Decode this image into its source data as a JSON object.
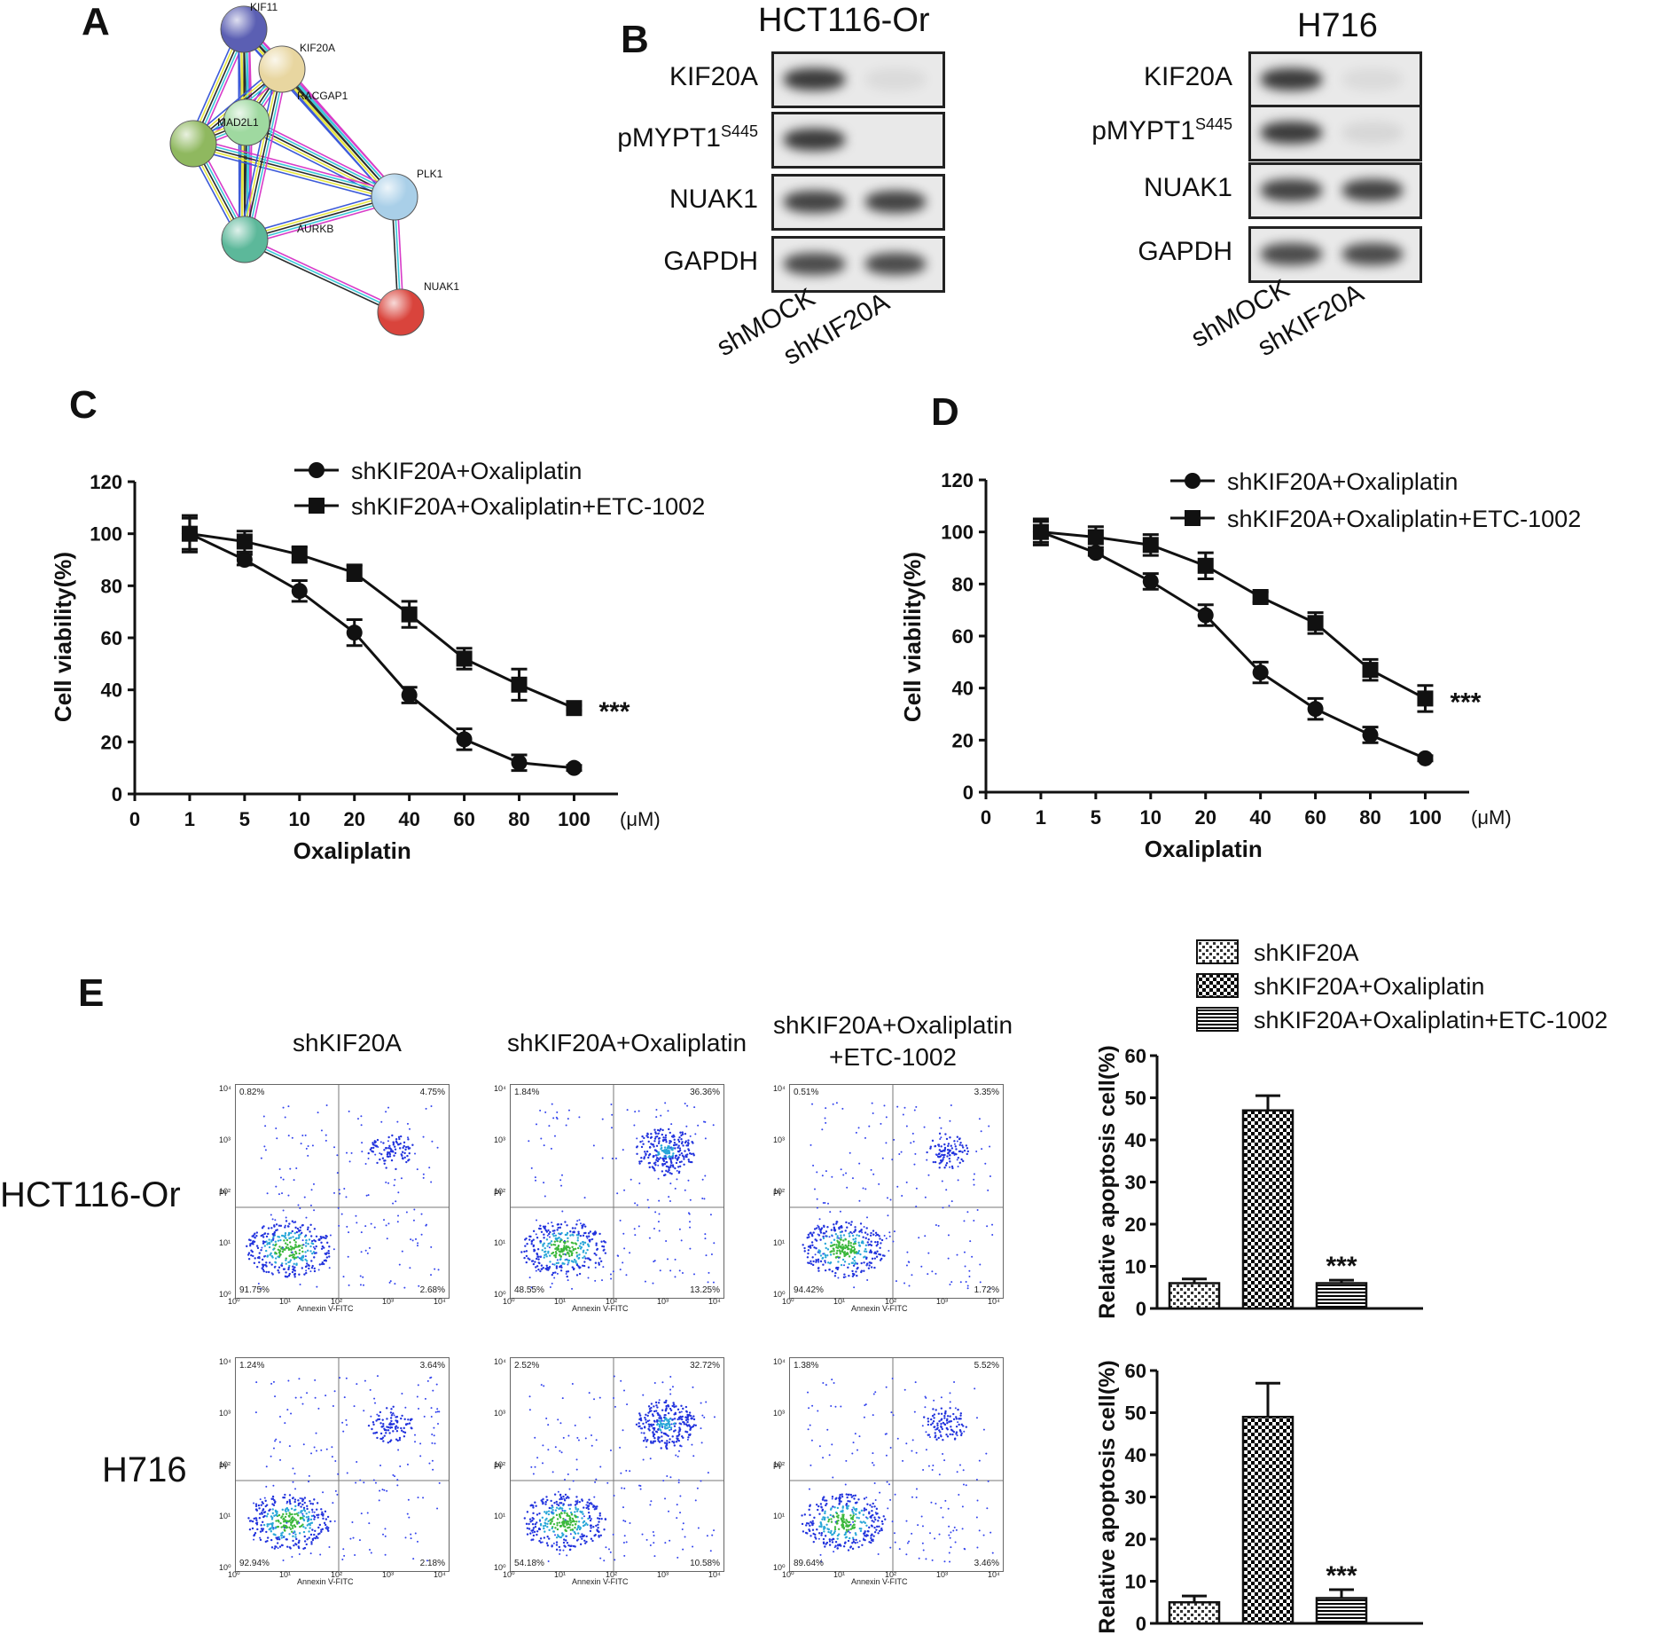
{
  "panels": {
    "A": "A",
    "B": "B",
    "C": "C",
    "D": "D",
    "E": "E"
  },
  "network": {
    "nodes": [
      {
        "name": "KIF11",
        "color": "#5b5fb3"
      },
      {
        "name": "KIF20A",
        "color": "#e8d6a0"
      },
      {
        "name": "RACGAP1",
        "color": "#9fd9a0"
      },
      {
        "name": "MAD2L1",
        "color": "#8fb85f"
      },
      {
        "name": "PLK1",
        "color": "#a9cfe8"
      },
      {
        "name": "AURKB",
        "color": "#5cb89a"
      },
      {
        "name": "NUAK1",
        "color": "#d9443c"
      }
    ]
  },
  "western": {
    "hct_title": "HCT116-Or",
    "h716_title": "H716",
    "rows": [
      "KIF20A",
      "pMYPT1",
      "NUAK1",
      "GAPDH"
    ],
    "site_sup": "S445",
    "lanes": [
      "shMOCK",
      "shKIF20A"
    ]
  },
  "chart_data": [
    {
      "type": "line",
      "panel": "C",
      "xlabel": "Oxaliplatin",
      "xunit": "(μM)",
      "ylabel": "Cell viability(%)",
      "categories": [
        "0",
        "1",
        "5",
        "10",
        "20",
        "40",
        "60",
        "80",
        "100"
      ],
      "x": [
        "1",
        "5",
        "10",
        "20",
        "40",
        "60",
        "80",
        "100"
      ],
      "ylim": [
        0,
        120
      ],
      "yticks": [
        "0",
        "20",
        "40",
        "60",
        "80",
        "100",
        "120"
      ],
      "series": [
        {
          "name": "shKIF20A+Oxaliplatin",
          "marker": "circle",
          "values": [
            100,
            90,
            78,
            62,
            38,
            21,
            12,
            10
          ],
          "err": [
            7,
            2,
            4,
            5,
            3,
            4,
            3,
            1
          ]
        },
        {
          "name": "shKIF20A+Oxaliplatin+ETC-1002",
          "marker": "square",
          "values": [
            100,
            97,
            92,
            85,
            69,
            52,
            42,
            33
          ],
          "err": [
            6,
            4,
            3,
            3,
            5,
            4,
            6,
            1
          ]
        }
      ],
      "annotation": "***"
    },
    {
      "type": "line",
      "panel": "D",
      "xlabel": "Oxaliplatin",
      "xunit": "(μM)",
      "ylabel": "Cell viability(%)",
      "categories": [
        "0",
        "1",
        "5",
        "10",
        "20",
        "40",
        "60",
        "80",
        "100"
      ],
      "x": [
        "1",
        "5",
        "10",
        "20",
        "40",
        "60",
        "80",
        "100"
      ],
      "ylim": [
        0,
        120
      ],
      "yticks": [
        "0",
        "20",
        "40",
        "60",
        "80",
        "100",
        "120"
      ],
      "series": [
        {
          "name": "shKIF20A+Oxaliplatin",
          "marker": "circle",
          "values": [
            100,
            92,
            81,
            68,
            46,
            32,
            22,
            13
          ],
          "err": [
            4,
            1,
            3,
            4,
            4,
            4,
            3,
            1
          ]
        },
        {
          "name": "shKIF20A+Oxaliplatin+ETC-1002",
          "marker": "square",
          "values": [
            100,
            98,
            95,
            87,
            75,
            65,
            47,
            36
          ],
          "err": [
            5,
            4,
            4,
            5,
            2,
            4,
            4,
            5
          ]
        }
      ],
      "annotation": "***"
    },
    {
      "type": "bar",
      "panel": "E-HCT116-Or",
      "ylabel": "Relative apoptosis cell(%)",
      "categories": [
        "shKIF20A",
        "shKIF20A+Oxaliplatin",
        "shKIF20A+Oxaliplatin+ETC-1002"
      ],
      "values": [
        6,
        47,
        6
      ],
      "err": [
        1,
        3.5,
        0.7
      ],
      "ylim": [
        0,
        60
      ],
      "yticks": [
        "0",
        "10",
        "20",
        "30",
        "40",
        "50",
        "60"
      ],
      "annotation": "***"
    },
    {
      "type": "bar",
      "panel": "E-H716",
      "ylabel": "Relative apoptosis cell(%)",
      "categories": [
        "shKIF20A",
        "shKIF20A+Oxaliplatin",
        "shKIF20A+Oxaliplatin+ETC-1002"
      ],
      "values": [
        5,
        49,
        6
      ],
      "err": [
        1.5,
        8,
        2
      ],
      "ylim": [
        0,
        60
      ],
      "yticks": [
        "0",
        "10",
        "20",
        "30",
        "40",
        "50",
        "60"
      ],
      "annotation": "***"
    }
  ],
  "legend_E": [
    "shKIF20A",
    "shKIF20A+Oxaliplatin",
    "shKIF20A+Oxaliplatin+ETC-1002"
  ],
  "flow": {
    "columns": [
      "shKIF20A",
      "shKIF20A+Oxaliplatin",
      "shKIF20A+Oxaliplatin\n+ETC-1002"
    ],
    "rows": [
      "HCT116-Or",
      "H716"
    ],
    "xaxis": "Annexin V-FITC",
    "yaxis": "PI",
    "ticks": [
      "10⁰",
      "10¹",
      "10²",
      "10³",
      "10⁴"
    ],
    "quadrants": [
      [
        [
          "0.82%",
          "4.75%",
          "91.75%",
          "2.68%"
        ],
        [
          "1.84%",
          "36.36%",
          "48.55%",
          "13.25%"
        ],
        [
          "0.51%",
          "3.35%",
          "94.42%",
          "1.72%"
        ]
      ],
      [
        [
          "1.24%",
          "3.64%",
          "92.94%",
          "2.18%"
        ],
        [
          "2.52%",
          "32.72%",
          "54.18%",
          "10.58%"
        ],
        [
          "1.38%",
          "5.52%",
          "89.64%",
          "3.46%"
        ]
      ]
    ]
  }
}
